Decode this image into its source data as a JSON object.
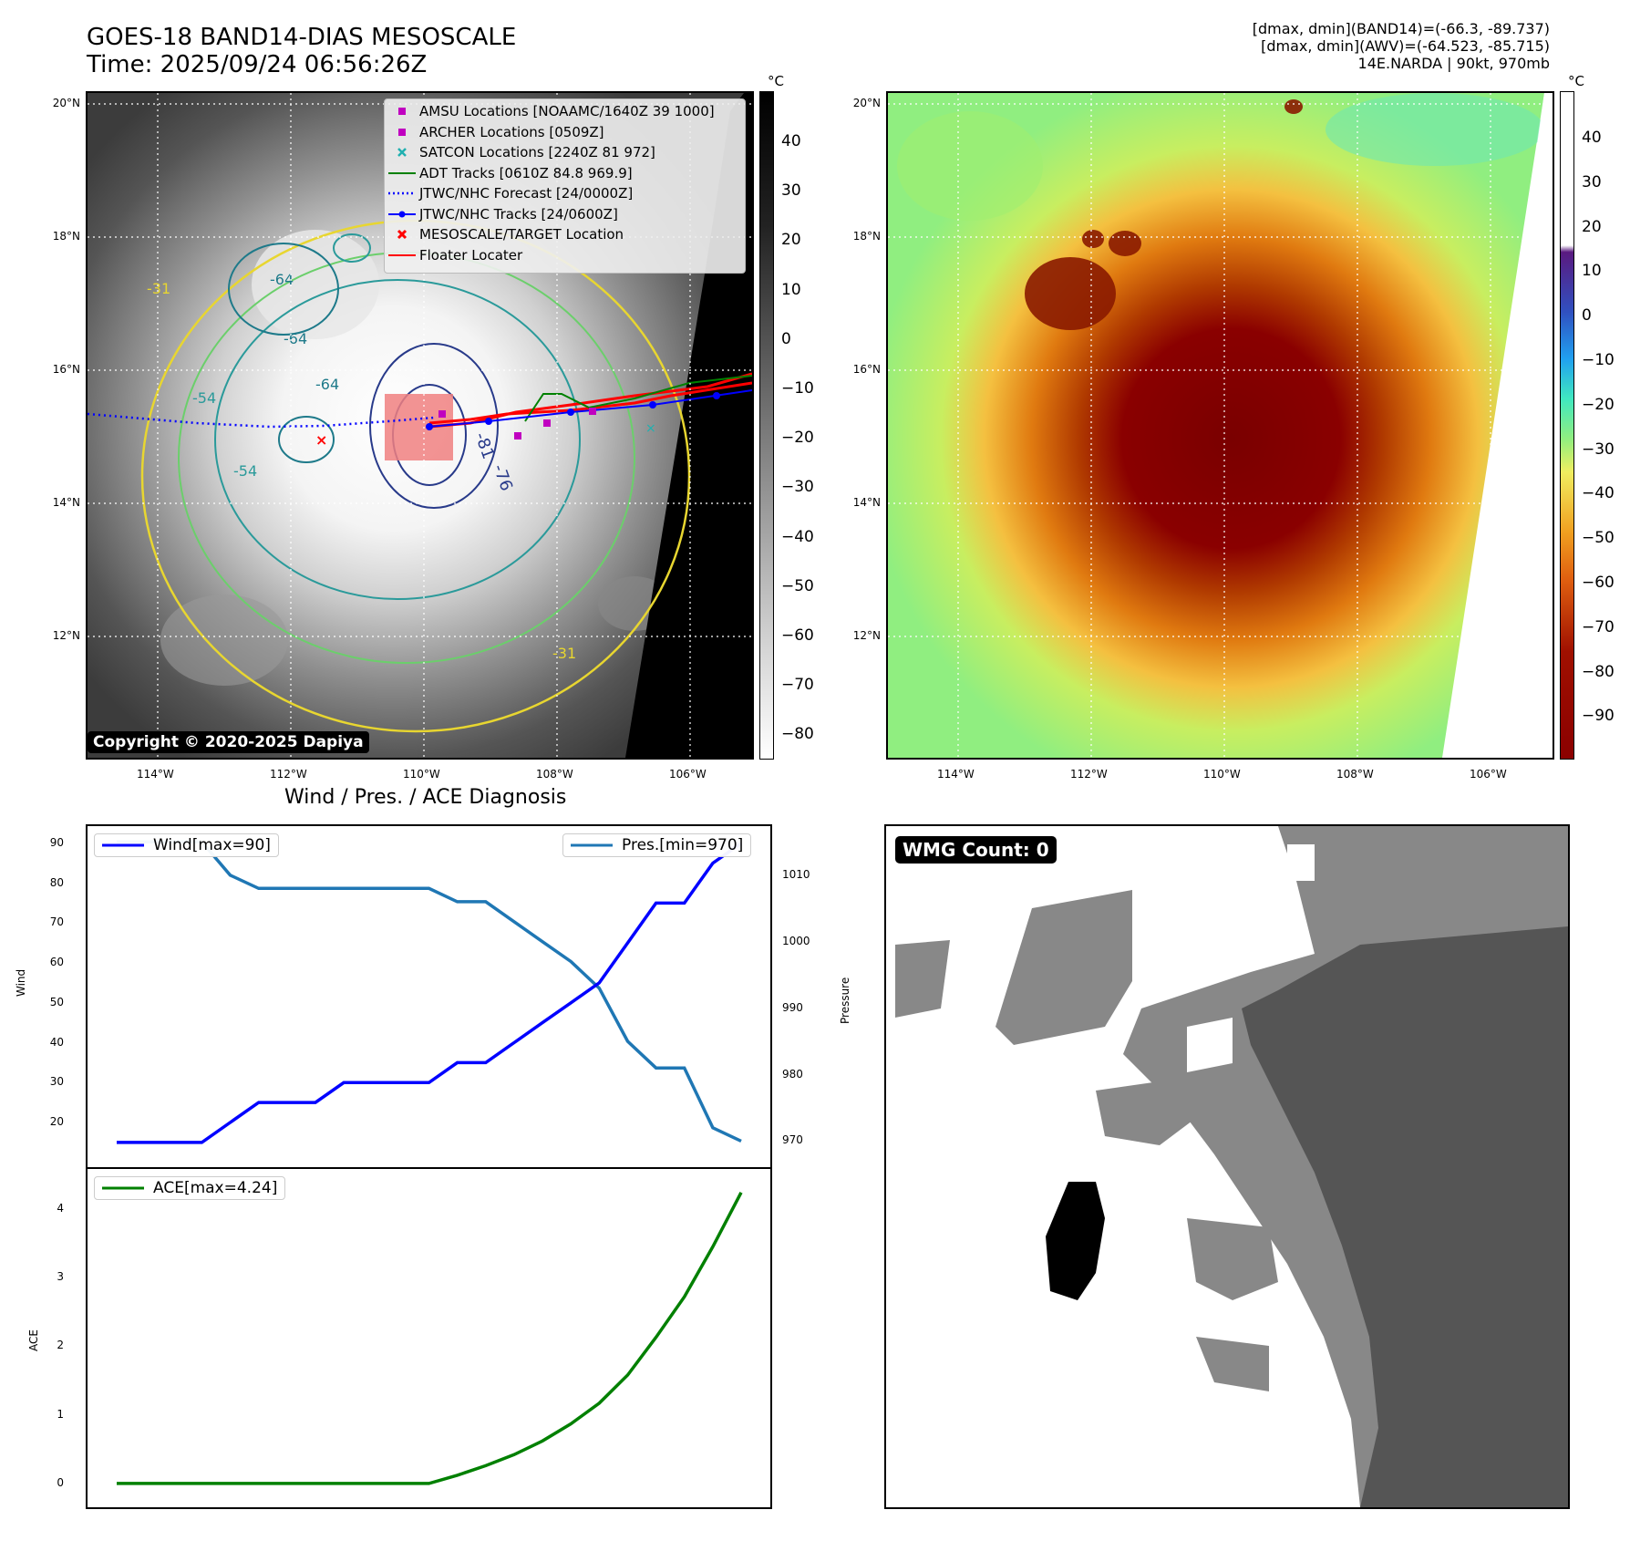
{
  "header": {
    "title_line1": "GOES-18 BAND14-DIAS MESOSCALE",
    "title_line2": "Time: 2025/09/24 06:56:26Z",
    "info_line1": "[dmax, dmin](BAND14)=(-66.3, -89.737)",
    "info_line2": "[dmax, dmin](AWV)=(-64.523, -85.715)",
    "info_line3": "14E.NARDA | 90kt, 970mb"
  },
  "map": {
    "lat_labels": [
      "20°N",
      "18°N",
      "16°N",
      "14°N",
      "12°N"
    ],
    "lon_labels": [
      "114°W",
      "112°W",
      "110°W",
      "108°W",
      "106°W"
    ],
    "copyright": "Copyright © 2020-2025 Dapiya",
    "contour_labels": [
      "-64",
      "-64",
      "-64",
      "-54",
      "-54",
      "-76",
      "-81",
      "-31",
      "-31"
    ]
  },
  "colorbar_gray": {
    "unit": "°C",
    "ticks": [
      "40",
      "30",
      "20",
      "10",
      "0",
      "−10",
      "−20",
      "−30",
      "−40",
      "−50",
      "−60",
      "−70",
      "−80"
    ]
  },
  "colorbar_color": {
    "unit": "°C",
    "ticks": [
      "40",
      "30",
      "20",
      "10",
      "0",
      "−10",
      "−20",
      "−30",
      "−40",
      "−50",
      "−60",
      "−70",
      "−80",
      "−90"
    ]
  },
  "legend": {
    "items": [
      {
        "label": "AMSU Locations [NOAAMC/1640Z 39 1000]",
        "color": "#c000c0",
        "marker": "square"
      },
      {
        "label": "ARCHER Locations [0509Z]",
        "color": "#c000c0",
        "marker": "square"
      },
      {
        "label": "SATCON Locations [2240Z 81 972]",
        "color": "#20b0b0",
        "marker": "x"
      },
      {
        "label": "ADT Tracks [0610Z 84.8 969.9]",
        "color": "#008000",
        "marker": "line"
      },
      {
        "label": "JTWC/NHC Forecast [24/0000Z]",
        "color": "#0000ff",
        "marker": "dotted"
      },
      {
        "label": "JTWC/NHC Tracks [24/0600Z]",
        "color": "#0000ff",
        "marker": "line-dot"
      },
      {
        "label": "MESOSCALE/TARGET Location",
        "color": "#ff0000",
        "marker": "x"
      },
      {
        "label": "Floater Locater",
        "color": "#ff0000",
        "marker": "line"
      }
    ]
  },
  "diagnosis": {
    "title": "Wind / Pres. / ACE Diagnosis",
    "wind_legend": "Wind[max=90]",
    "pres_legend": "Pres.[min=970]",
    "ace_legend": "ACE[max=4.24]",
    "wind_axis_label": "Wind",
    "pres_axis_label": "Pressure",
    "ace_axis_label": "ACE"
  },
  "wmg": {
    "badge": "WMG Count: 0"
  },
  "chart_data": [
    {
      "type": "line",
      "title": "Wind / Pres. / ACE Diagnosis",
      "xlabel": "",
      "ylabel": "Wind",
      "ylim": [
        12,
        92
      ],
      "y_ticks": [
        20,
        30,
        40,
        50,
        60,
        70,
        80,
        90
      ],
      "series": [
        {
          "name": "Wind[max=90]",
          "color": "#0000ff",
          "values": [
            15,
            15,
            15,
            15,
            20,
            25,
            25,
            25,
            30,
            30,
            30,
            30,
            35,
            35,
            40,
            45,
            50,
            55,
            65,
            75,
            75,
            85,
            90
          ]
        }
      ],
      "y2label": "Pressure",
      "y2lim": [
        968,
        1016
      ],
      "y2_ticks": [
        970,
        980,
        990,
        1000,
        1010
      ],
      "series_y2": [
        {
          "name": "Pres.[min=970]",
          "color": "#1f77b4",
          "values": [
            1015,
            1015,
            1015,
            1015,
            1010,
            1008,
            1008,
            1008,
            1008,
            1008,
            1008,
            1008,
            1006,
            1006,
            1003,
            1000,
            997,
            993,
            985,
            981,
            981,
            972,
            970
          ]
        }
      ]
    },
    {
      "type": "line",
      "xlabel": "",
      "ylabel": "ACE",
      "ylim": [
        -0.2,
        4.45
      ],
      "y_ticks": [
        0,
        1,
        2,
        3,
        4
      ],
      "series": [
        {
          "name": "ACE[max=4.24]",
          "color": "#008000",
          "values": [
            0,
            0,
            0,
            0,
            0,
            0,
            0,
            0,
            0,
            0,
            0,
            0,
            0.12,
            0.26,
            0.42,
            0.62,
            0.87,
            1.17,
            1.58,
            2.13,
            2.72,
            3.45,
            4.24
          ]
        }
      ]
    }
  ]
}
